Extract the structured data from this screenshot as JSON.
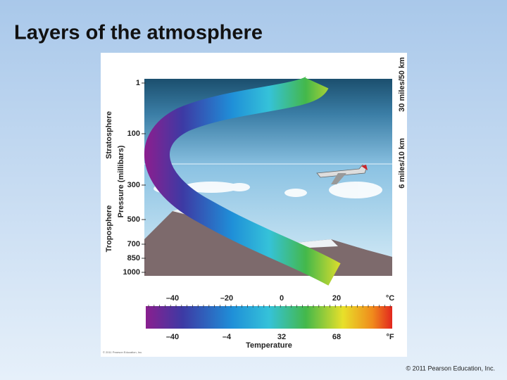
{
  "title": "Layers of the atmosphere",
  "figure": {
    "layer_labels": [
      "Stratosphere",
      "Troposphere"
    ],
    "pressure_axis_label": "Pressure (millibars)",
    "pressure_ticks": [
      "1",
      "100",
      "300",
      "500",
      "700",
      "850",
      "1000"
    ],
    "altitude_labels": [
      "30 miles/50 km",
      "6 miles/10 km"
    ],
    "temperature": {
      "celsius_ticks": [
        "–40",
        "–20",
        "0",
        "20"
      ],
      "celsius_unit": "°C",
      "fahrenheit_ticks": [
        "–40",
        "–4",
        "32",
        "68"
      ],
      "fahrenheit_unit": "°F",
      "label": "Temperature"
    },
    "figure_credit": "© 2011 Pearson Education, Inc."
  },
  "footer": {
    "credit": "© 2011 Pearson Education, Inc."
  }
}
